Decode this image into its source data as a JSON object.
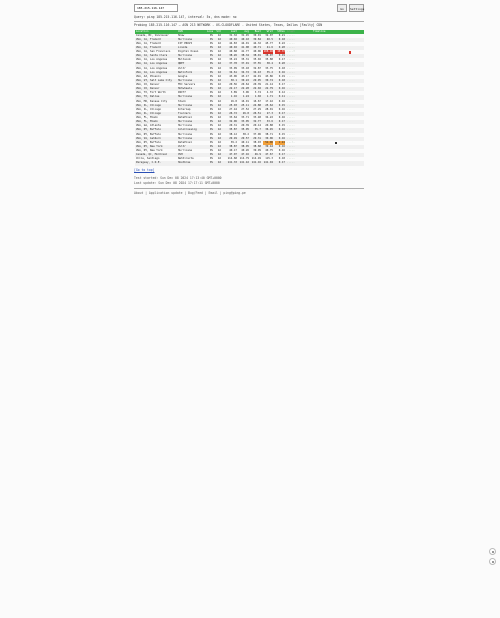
{
  "search": {
    "value": "185.215.116.147"
  },
  "toolbar": {
    "go_label": "Go",
    "settings_label": "Settings"
  },
  "query_line": "Query: ping 185.215.116.147, interval: 5s, dns mode: no",
  "probing_line": "Probing 185.215.116.147 – ASN 213 NETWORK - US-CLOUDFLARE - United States, Texas, Dallas [Faulty] CDN",
  "columns": [
    "Location",
    "ASN",
    "Loss",
    "Snt",
    "Last",
    "Avg",
    "Best",
    "Wrst",
    "StDev",
    "Graph",
    "Timeline"
  ],
  "rows": [
    {
      "loc": "Canada, BC, Vancouver",
      "as": "Shaw",
      "loss": "0%",
      "snt": "42",
      "last": "31.32",
      "avg": "31.45",
      "best": "30.91",
      "wrst": "32.07",
      "sd": "0.21",
      "g": "....."
    },
    {
      "loc": "USA, CA, Fremont",
      "as": "Hurricane",
      "loss": "0%",
      "snt": "42",
      "last": "40.02",
      "avg": "40.10",
      "best": "39.84",
      "wrst": "40.5",
      "sd": "0.18",
      "g": "....."
    },
    {
      "loc": "USA, CA, Fremont",
      "as": "IIT PROVI",
      "loss": "0%",
      "snt": "42",
      "last": "44.83",
      "avg": "44.91",
      "best": "44.32",
      "wrst": "45.77",
      "sd": "0.22",
      "g": "....."
    },
    {
      "loc": "USA, CA, Fremont",
      "as": "Linode",
      "loss": "0%",
      "snt": "42",
      "last": "40.92",
      "avg": "41.08",
      "best": "40.71",
      "wrst": "41.6",
      "sd": "0.20",
      "g": "....."
    },
    {
      "loc": "USA, CA, San Francisco",
      "as": "Digital Ocean",
      "loss": "0%",
      "snt": "42",
      "last": "40.68",
      "avg": "41.77",
      "best": "40.06",
      "wrst": "108.46",
      "sd": "10.37",
      "g": "....!",
      "hl": "red"
    },
    {
      "loc": "USA, CA, Santa Clara",
      "as": "Hurricane",
      "loss": "0%",
      "snt": "42",
      "last": "38.26",
      "avg": "38.34",
      "best": "38.01",
      "wrst": "38.97",
      "sd": "0.19",
      "g": "....."
    },
    {
      "loc": "USA, CA, Los Angeles",
      "as": "Multacom",
      "loss": "0%",
      "snt": "42",
      "last": "35.24",
      "avg": "35.31",
      "best": "35.02",
      "wrst": "35.88",
      "sd": "0.17",
      "g": "....."
    },
    {
      "loc": "USA, CA, Los Angeles",
      "as": "QNET",
      "loss": "0%",
      "snt": "42",
      "last": "37.78",
      "avg": "37.91",
      "best": "37.55",
      "wrst": "38.4",
      "sd": "0.20",
      "g": "....."
    },
    {
      "loc": "USA, CA, Los Angeles",
      "as": "Vultr",
      "loss": "0%",
      "snt": "42",
      "last": "33.09",
      "avg": "33.18",
      "best": "32.87",
      "wrst": "33.75",
      "sd": "0.18",
      "g": "....."
    },
    {
      "loc": "USA, CA, Los Angeles",
      "as": "Netinform",
      "loss": "0%",
      "snt": "42",
      "last": "34.61",
      "avg": "34.72",
      "best": "34.43",
      "wrst": "35.2",
      "sd": "0.16",
      "g": "....."
    },
    {
      "loc": "USA, AZ, Phoenix",
      "as": "Google",
      "loss": "0%",
      "snt": "42",
      "last": "43.06",
      "avg": "43.17",
      "best": "42.91",
      "wrst": "43.86",
      "sd": "0.19",
      "g": "....."
    },
    {
      "loc": "USA, UT, Salt Lake City",
      "as": "Hurricane",
      "loss": "0%",
      "snt": "42",
      "last": "30.1",
      "avg": "30.22",
      "best": "29.95",
      "wrst": "30.74",
      "sd": "0.18",
      "g": "....."
    },
    {
      "loc": "USA, CO, Denver",
      "as": "FDC Servers",
      "loss": "0%",
      "snt": "42",
      "last": "20.56",
      "avg": "20.64",
      "best": "20.39",
      "wrst": "21.14",
      "sd": "0.17",
      "g": "....."
    },
    {
      "loc": "USA, CO, Denver",
      "as": "Hotwheels",
      "loss": "0%",
      "snt": "42",
      "last": "22.17",
      "avg": "22.28",
      "best": "22.02",
      "wrst": "22.79",
      "sd": "0.16",
      "g": "....."
    },
    {
      "loc": "USA, TX, Fort Worth",
      "as": "INIT7",
      "loss": "0%",
      "snt": "42",
      "last": "3.89",
      "avg": "3.96",
      "best": "3.74",
      "wrst": "4.33",
      "sd": "0.12",
      "g": "....."
    },
    {
      "loc": "USA, TX, Dallas",
      "as": "Hurricane",
      "loss": "0%",
      "snt": "42",
      "last": "1.16",
      "avg": "1.24",
      "best": "1.02",
      "wrst": "1.71",
      "sd": "0.11",
      "g": "....."
    },
    {
      "loc": "USA, MO, Kansas City",
      "as": "Stack",
      "loss": "0%",
      "snt": "42",
      "last": "16.8",
      "avg": "16.91",
      "best": "16.67",
      "wrst": "17.42",
      "sd": "0.16",
      "g": "....."
    },
    {
      "loc": "USA, IL, Chicago",
      "as": "Hurricane",
      "loss": "0%",
      "snt": "42",
      "last": "25.03",
      "avg": "25.11",
      "best": "24.88",
      "wrst": "25.62",
      "sd": "0.15",
      "g": "....."
    },
    {
      "loc": "USA, IL, Chicago",
      "as": "Internap",
      "loss": "0%",
      "snt": "42",
      "last": "27.44",
      "avg": "27.52",
      "best": "27.29",
      "wrst": "28.01",
      "sd": "0.16",
      "g": "....."
    },
    {
      "loc": "USA, IL, Chicago",
      "as": "Tierzero",
      "loss": "0%",
      "snt": "42",
      "last": "26.72",
      "avg": "26.8",
      "best": "26.51",
      "wrst": "27.3",
      "sd": "0.17",
      "g": "....."
    },
    {
      "loc": "USA, FL, Miami",
      "as": "DataPixel",
      "loss": "0%",
      "snt": "42",
      "last": "33.64",
      "avg": "33.71",
      "best": "33.48",
      "wrst": "34.22",
      "sd": "0.16",
      "g": "....."
    },
    {
      "loc": "USA, FL, Miami",
      "as": "Hurricane",
      "loss": "0%",
      "snt": "42",
      "last": "32.96",
      "avg": "33.05",
      "best": "32.77",
      "wrst": "33.6",
      "sd": "0.17",
      "g": "....."
    },
    {
      "loc": "USA, GA, Atlanta",
      "as": "Hurricane",
      "loss": "0%",
      "snt": "42",
      "last": "20.31",
      "avg": "20.39",
      "best": "20.14",
      "wrst": "20.88",
      "sd": "0.15",
      "g": "....."
    },
    {
      "loc": "USA, NY, Buffalo",
      "as": "ColoCrossing",
      "loss": "0%",
      "snt": "42",
      "last": "35.87",
      "avg": "35.95",
      "best": "35.7",
      "wrst": "36.45",
      "sd": "0.16",
      "g": "....."
    },
    {
      "loc": "USA, NY, Buffalo",
      "as": "Hurricane",
      "loss": "0%",
      "snt": "42",
      "last": "38.12",
      "avg": "38.2",
      "best": "37.96",
      "wrst": "38.71",
      "sd": "0.15",
      "g": "....."
    },
    {
      "loc": "USA, VA, Ashburn",
      "as": "Hurricane",
      "loss": "0%",
      "snt": "42",
      "last": "29.49",
      "avg": "29.57",
      "best": "29.31",
      "wrst": "30.06",
      "sd": "0.16",
      "g": "....."
    },
    {
      "loc": "USA, NY, Buffalo",
      "as": "DataPixel",
      "loss": "0%",
      "snt": "42",
      "last": "39.2",
      "avg": "40.11",
      "best": "38.93",
      "wrst": "51.06",
      "sd": "2.41",
      "g": "...:.",
      "hl": "orange"
    },
    {
      "loc": "USA, NY, New York",
      "as": "Vultr",
      "loss": "0%",
      "snt": "42",
      "last": "38.87",
      "avg": "38.95",
      "best": "38.68",
      "wrst": "39.44",
      "sd": "0.16",
      "g": "....."
    },
    {
      "loc": "USA, NY, New York",
      "as": "Hurricane",
      "loss": "0%",
      "snt": "42",
      "last": "40.17",
      "avg": "40.26",
      "best": "39.99",
      "wrst": "40.75",
      "sd": "0.16",
      "g": "....."
    },
    {
      "loc": "Canada, QC, Montreal",
      "as": "OVH",
      "loss": "0%",
      "snt": "42",
      "last": "47.07",
      "avg": "47.16",
      "best": "46.9",
      "wrst": "47.67",
      "sd": "0.17",
      "g": "....."
    },
    {
      "loc": "Chile, Santiago",
      "as": "Netdirecta",
      "loss": "0%",
      "snt": "42",
      "last": "114.68",
      "avg": "114.79",
      "best": "114.49",
      "wrst": "115.3",
      "sd": "0.18",
      "g": "....."
    },
    {
      "loc": "Paraguay, C.D.E.",
      "as": "Hostbras",
      "loss": "0%",
      "snt": "42",
      "last": "141.33",
      "avg": "141.42",
      "best": "141.16",
      "wrst": "141.94",
      "sd": "0.17",
      "g": "....."
    }
  ],
  "footer": {
    "go_top": "[Go to top]",
    "test_started": "Test started: Sun Dec 08 2024 17:13:40 GMT+0000",
    "last_update": "Last update: Sun Dec 08 2024 17:17:11 GMT+0000",
    "nav": "About | Application update | Bug/Feed | Email | ping@ping.pe"
  },
  "colors": {
    "accent": "#3cb34a",
    "alert_red": "#d9342b",
    "alert_orange": "#f3a13b",
    "link": "#2a4fb5"
  }
}
